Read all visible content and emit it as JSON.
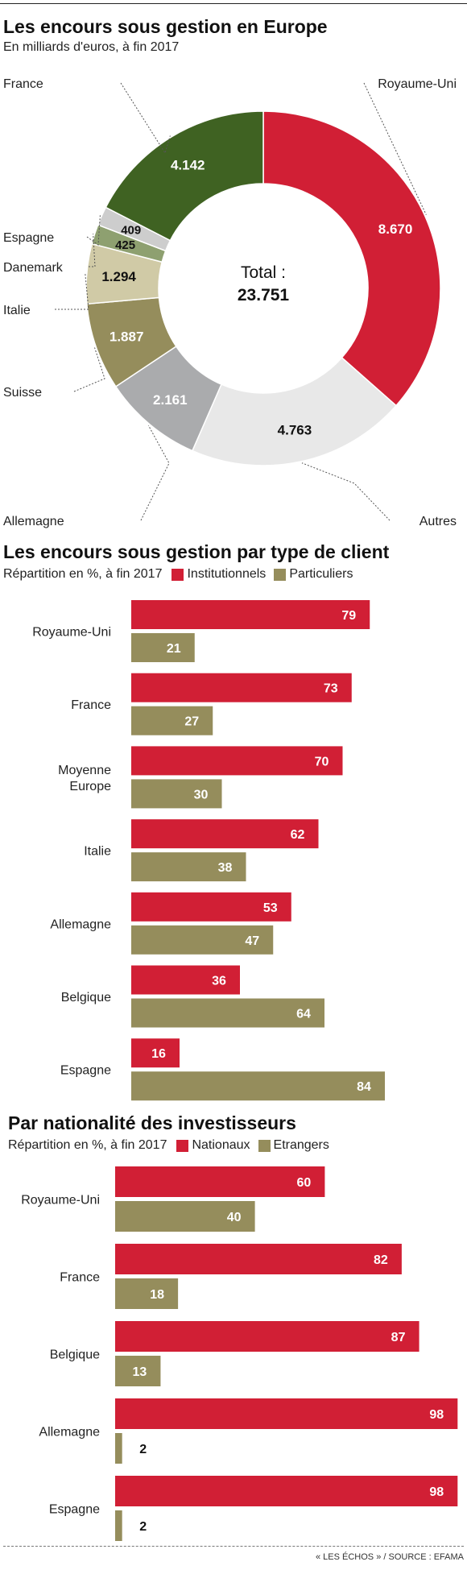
{
  "footer": "« LES ÉCHOS » / SOURCE : EFAMA",
  "colors": {
    "red": "#d11f35",
    "olive": "#958d5c",
    "green": "#3f6222",
    "lightgray": "#e8e8e8",
    "gray": "#aaabad",
    "beige": "#d0caa6",
    "midgreen": "#8ea070",
    "silver": "#cdcdcd"
  },
  "chart_data": [
    {
      "type": "pie",
      "title": "Les encours sous gestion en Europe",
      "subtitle": "En milliards d'euros, à fin 2017",
      "center_label": "Total :",
      "center_value": "23.751",
      "total": 23751,
      "slices": [
        {
          "name": "Royaume-Uni",
          "value": 8670,
          "label": "8.670",
          "color": "#d11f35"
        },
        {
          "name": "Autres",
          "value": 4763,
          "label": "4.763",
          "color": "#e8e8e8"
        },
        {
          "name": "Allemagne",
          "value": 2161,
          "label": "2.161",
          "color": "#aaabad"
        },
        {
          "name": "Suisse",
          "value": 1887,
          "label": "1.887",
          "color": "#958d5c"
        },
        {
          "name": "Italie",
          "value": 1294,
          "label": "1.294",
          "color": "#d0caa6"
        },
        {
          "name": "Danemark",
          "value": 425,
          "label": "425",
          "color": "#8ea070"
        },
        {
          "name": "Espagne",
          "value": 409,
          "label": "409",
          "color": "#cdcdcd"
        },
        {
          "name": "France",
          "value": 4142,
          "label": "4.142",
          "color": "#3f6222"
        }
      ]
    },
    {
      "type": "bar",
      "orientation": "horizontal",
      "title": "Les encours sous gestion par type de client",
      "subtitle": "Répartition en %, à fin 2017",
      "categories": [
        "Royaume-Uni",
        "France",
        "Moyenne Europe",
        "Italie",
        "Allemagne",
        "Belgique",
        "Espagne"
      ],
      "series": [
        {
          "name": "Institutionnels",
          "color": "#d11f35",
          "values": [
            79,
            73,
            70,
            62,
            53,
            36,
            16
          ]
        },
        {
          "name": "Particuliers",
          "color": "#958d5c",
          "values": [
            21,
            27,
            30,
            38,
            47,
            64,
            84
          ]
        }
      ],
      "xlim": [
        0,
        100
      ]
    },
    {
      "type": "bar",
      "orientation": "horizontal",
      "title": "Par nationalité des investisseurs",
      "subtitle": "Répartition en %, à fin 2017",
      "categories": [
        "Royaume-Uni",
        "France",
        "Belgique",
        "Allemagne",
        "Espagne"
      ],
      "series": [
        {
          "name": "Nationaux",
          "color": "#d11f35",
          "values": [
            60,
            82,
            87,
            98,
            98
          ]
        },
        {
          "name": "Etrangers",
          "color": "#958d5c",
          "values": [
            40,
            18,
            13,
            2,
            2
          ]
        }
      ],
      "xlim": [
        0,
        100
      ]
    }
  ]
}
